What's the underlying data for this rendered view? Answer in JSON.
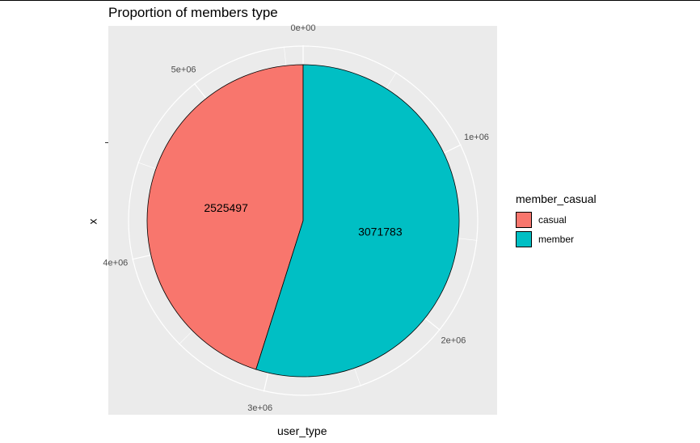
{
  "chart_data": {
    "type": "pie",
    "title": "Proportion of members type",
    "xlabel": "user_type",
    "ylabel": "x",
    "legend_title": "member_casual",
    "legend_position": "right",
    "categories": [
      "casual",
      "member"
    ],
    "values": [
      2525497,
      3071783
    ],
    "data_labels": [
      "2525497",
      "3071783"
    ],
    "colors": [
      "#F8766D",
      "#00BFC4"
    ],
    "axis_ticks": [
      {
        "label": "0e+00",
        "value": 0
      },
      {
        "label": "1e+06",
        "value": 1000000
      },
      {
        "label": "2e+06",
        "value": 2000000
      },
      {
        "label": "3e+06",
        "value": 3000000
      },
      {
        "label": "4e+06",
        "value": 4000000
      },
      {
        "label": "5e+06",
        "value": 5000000
      }
    ],
    "panel_background": "#EBEBEB",
    "grid": true
  }
}
